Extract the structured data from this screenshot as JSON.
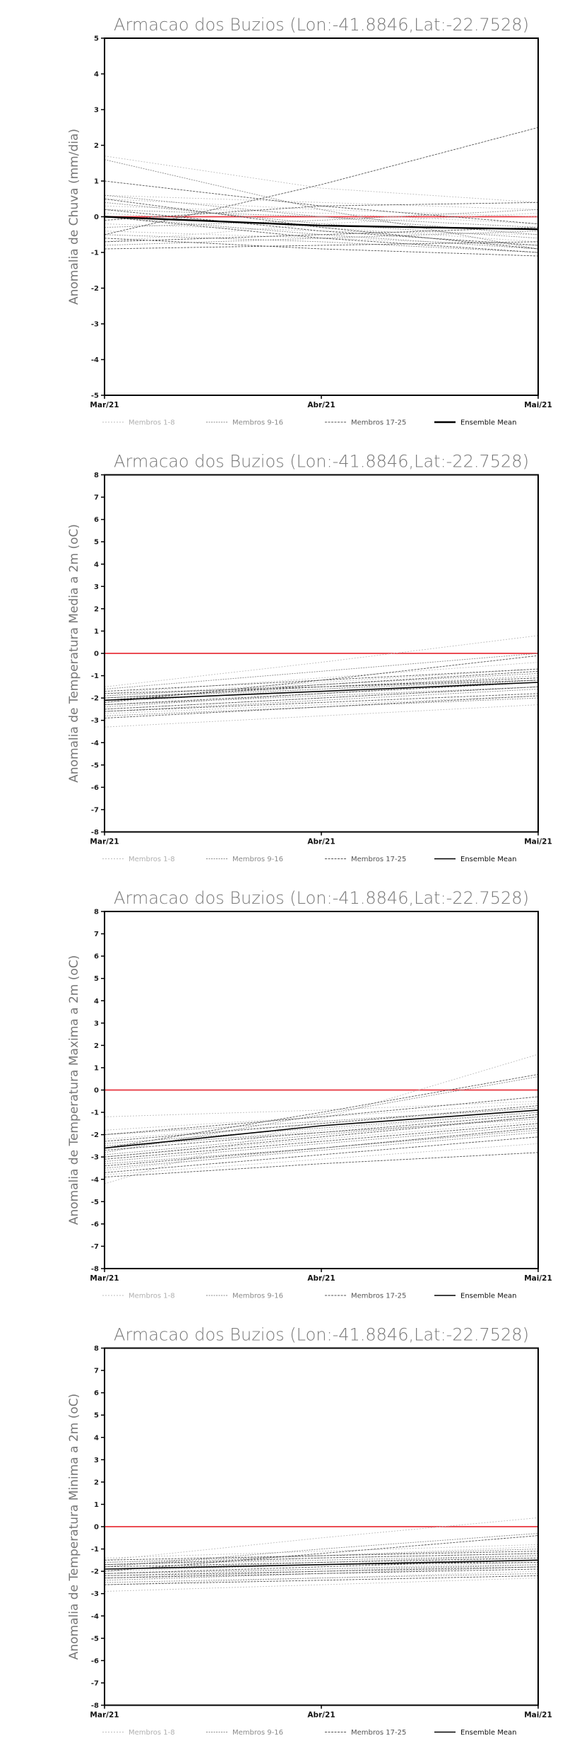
{
  "colors": {
    "zero_line": "#e8323c",
    "members_1_8": "#bdbdbd",
    "members_9_16": "#8a8a8a",
    "members_17_25": "#555555",
    "ensemble_mean": "#000000",
    "text": "#777777",
    "axis": "#000000"
  },
  "legend_labels": [
    "Membros 1-8",
    "Membros 9-16",
    "Membros 17-25",
    "Ensemble Mean"
  ],
  "chart_data": [
    {
      "type": "line",
      "title": "Armacao dos Buzios (Lon:-41.8846,Lat:-22.7528)",
      "ylabel": "Anomalia de Chuva (mm/dia)",
      "xlabel": "",
      "categories": [
        "Mar/21",
        "Abr/21",
        "Mai/21"
      ],
      "ylim": [
        -5,
        5
      ],
      "yticks": [
        5,
        4,
        3,
        2,
        1,
        0,
        -1,
        -2,
        -3,
        -4,
        -5
      ],
      "grid": false,
      "legend_position": "bottom",
      "reference_line": 0,
      "series": [
        {
          "name": "Ensemble Mean",
          "values": [
            0.0,
            -0.25,
            -0.35
          ]
        },
        {
          "group": "Membros 1-8",
          "values": [
            1.7,
            0.8,
            0.4
          ]
        },
        {
          "group": "Membros 1-8",
          "values": [
            0.5,
            0.2,
            0.0
          ]
        },
        {
          "group": "Membros 1-8",
          "values": [
            0.1,
            -0.3,
            -0.7
          ]
        },
        {
          "group": "Membros 1-8",
          "values": [
            -0.4,
            -0.6,
            -0.8
          ]
        },
        {
          "group": "Membros 1-8",
          "values": [
            -0.7,
            -0.2,
            0.1
          ]
        },
        {
          "group": "Membros 1-8",
          "values": [
            0.3,
            0.1,
            -0.2
          ]
        },
        {
          "group": "Membros 1-8",
          "values": [
            -0.2,
            -0.4,
            -0.5
          ]
        },
        {
          "group": "Membros 1-8",
          "values": [
            0.6,
            0.4,
            0.2
          ]
        },
        {
          "group": "Membros 9-16",
          "values": [
            1.6,
            0.2,
            -0.9
          ]
        },
        {
          "group": "Membros 9-16",
          "values": [
            0.4,
            -0.2,
            -0.6
          ]
        },
        {
          "group": "Membros 9-16",
          "values": [
            -0.5,
            -0.7,
            -1.0
          ]
        },
        {
          "group": "Membros 9-16",
          "values": [
            0.2,
            0.0,
            -0.3
          ]
        },
        {
          "group": "Membros 9-16",
          "values": [
            -0.8,
            -0.6,
            -0.4
          ]
        },
        {
          "group": "Membros 9-16",
          "values": [
            0.0,
            -0.5,
            -0.9
          ]
        },
        {
          "group": "Membros 9-16",
          "values": [
            -0.3,
            -0.1,
            0.2
          ]
        },
        {
          "group": "Membros 9-16",
          "values": [
            0.6,
            0.0,
            -0.5
          ]
        },
        {
          "group": "Membros 17-25",
          "values": [
            -0.5,
            0.9,
            2.5
          ]
        },
        {
          "group": "Membros 17-25",
          "values": [
            1.0,
            0.3,
            -0.2
          ]
        },
        {
          "group": "Membros 17-25",
          "values": [
            0.5,
            -0.3,
            -0.9
          ]
        },
        {
          "group": "Membros 17-25",
          "values": [
            -0.9,
            -0.8,
            -0.7
          ]
        },
        {
          "group": "Membros 17-25",
          "values": [
            -0.6,
            -0.9,
            -1.1
          ]
        },
        {
          "group": "Membros 17-25",
          "values": [
            0.2,
            -0.4,
            -0.8
          ]
        },
        {
          "group": "Membros 17-25",
          "values": [
            -0.1,
            0.3,
            0.4
          ]
        },
        {
          "group": "Membros 17-25",
          "values": [
            0.0,
            -0.6,
            -1.0
          ]
        },
        {
          "group": "Membros 17-25",
          "values": [
            -0.7,
            -0.5,
            -0.3
          ]
        }
      ]
    },
    {
      "type": "line",
      "title": "Armacao dos Buzios (Lon:-41.8846,Lat:-22.7528)",
      "ylabel": "Anomalia de Temperatura Media a 2m (oC)",
      "xlabel": "",
      "categories": [
        "Mar/21",
        "Abr/21",
        "Mai/21"
      ],
      "ylim": [
        -8,
        8
      ],
      "yticks": [
        8,
        7,
        6,
        5,
        4,
        3,
        2,
        1,
        0,
        -1,
        -2,
        -3,
        -4,
        -5,
        -6,
        -7,
        -8
      ],
      "grid": false,
      "legend_position": "bottom",
      "reference_line": 0,
      "series": [
        {
          "name": "Ensemble Mean",
          "values": [
            -2.1,
            -1.7,
            -1.3
          ]
        },
        {
          "group": "Membros 1-8",
          "values": [
            -1.5,
            -0.4,
            0.8
          ]
        },
        {
          "group": "Membros 1-8",
          "values": [
            -3.3,
            -2.8,
            -2.3
          ]
        },
        {
          "group": "Membros 1-8",
          "values": [
            -2.0,
            -1.5,
            -1.0
          ]
        },
        {
          "group": "Membros 1-8",
          "values": [
            -2.5,
            -2.0,
            -1.5
          ]
        },
        {
          "group": "Membros 1-8",
          "values": [
            -1.8,
            -1.1,
            -0.4
          ]
        },
        {
          "group": "Membros 1-8",
          "values": [
            -2.7,
            -2.3,
            -1.9
          ]
        },
        {
          "group": "Membros 1-8",
          "values": [
            -2.2,
            -1.6,
            -1.0
          ]
        },
        {
          "group": "Membros 1-8",
          "values": [
            -1.9,
            -1.3,
            -0.7
          ]
        },
        {
          "group": "Membros 9-16",
          "values": [
            -1.6,
            -0.8,
            0.0
          ]
        },
        {
          "group": "Membros 9-16",
          "values": [
            -2.4,
            -1.8,
            -1.2
          ]
        },
        {
          "group": "Membros 9-16",
          "values": [
            -2.1,
            -1.7,
            -1.3
          ]
        },
        {
          "group": "Membros 9-16",
          "values": [
            -2.8,
            -2.4,
            -2.0
          ]
        },
        {
          "group": "Membros 9-16",
          "values": [
            -1.9,
            -1.4,
            -0.9
          ]
        },
        {
          "group": "Membros 9-16",
          "values": [
            -2.3,
            -1.9,
            -1.5
          ]
        },
        {
          "group": "Membros 9-16",
          "values": [
            -2.6,
            -2.1,
            -1.6
          ]
        },
        {
          "group": "Membros 9-16",
          "values": [
            -2.0,
            -1.6,
            -1.2
          ]
        },
        {
          "group": "Membros 17-25",
          "values": [
            -2.2,
            -1.2,
            -0.1
          ]
        },
        {
          "group": "Membros 17-25",
          "values": [
            -1.7,
            -1.2,
            -0.7
          ]
        },
        {
          "group": "Membros 17-25",
          "values": [
            -2.5,
            -2.0,
            -1.5
          ]
        },
        {
          "group": "Membros 17-25",
          "values": [
            -2.0,
            -1.5,
            -1.1
          ]
        },
        {
          "group": "Membros 17-25",
          "values": [
            -2.9,
            -2.4,
            -1.9
          ]
        },
        {
          "group": "Membros 17-25",
          "values": [
            -2.3,
            -1.8,
            -1.3
          ]
        },
        {
          "group": "Membros 17-25",
          "values": [
            -1.8,
            -1.5,
            -1.2
          ]
        },
        {
          "group": "Membros 17-25",
          "values": [
            -2.6,
            -2.2,
            -1.8
          ]
        },
        {
          "group": "Membros 17-25",
          "values": [
            -2.1,
            -1.4,
            -0.8
          ]
        }
      ]
    },
    {
      "type": "line",
      "title": "Armacao dos Buzios (Lon:-41.8846,Lat:-22.7528)",
      "ylabel": "Anomalia de Temperatura Maxima a 2m (oC)",
      "xlabel": "",
      "categories": [
        "Mar/21",
        "Abr/21",
        "Mai/21"
      ],
      "ylim": [
        -8,
        8
      ],
      "yticks": [
        8,
        7,
        6,
        5,
        4,
        3,
        2,
        1,
        0,
        -1,
        -2,
        -3,
        -4,
        -5,
        -6,
        -7,
        -8
      ],
      "grid": false,
      "legend_position": "bottom",
      "reference_line": 0,
      "series": [
        {
          "name": "Ensemble Mean",
          "values": [
            -2.6,
            -1.6,
            -0.9
          ]
        },
        {
          "group": "Membros 1-8",
          "values": [
            -4.2,
            -1.3,
            1.6
          ]
        },
        {
          "group": "Membros 1-8",
          "values": [
            -1.2,
            -0.9,
            -0.5
          ]
        },
        {
          "group": "Membros 1-8",
          "values": [
            -3.6,
            -2.6,
            -1.7
          ]
        },
        {
          "group": "Membros 1-8",
          "values": [
            -3.0,
            -2.2,
            -1.4
          ]
        },
        {
          "group": "Membros 1-8",
          "values": [
            -2.2,
            -1.5,
            -0.8
          ]
        },
        {
          "group": "Membros 1-8",
          "values": [
            -3.8,
            -3.1,
            -2.4
          ]
        },
        {
          "group": "Membros 1-8",
          "values": [
            -2.6,
            -1.8,
            -1.0
          ]
        },
        {
          "group": "Membros 1-8",
          "values": [
            -1.8,
            -1.2,
            -0.6
          ]
        },
        {
          "group": "Membros 9-16",
          "values": [
            -2.8,
            -1.1,
            0.6
          ]
        },
        {
          "group": "Membros 9-16",
          "values": [
            -3.2,
            -2.4,
            -1.6
          ]
        },
        {
          "group": "Membros 9-16",
          "values": [
            -2.4,
            -1.7,
            -1.0
          ]
        },
        {
          "group": "Membros 9-16",
          "values": [
            -3.5,
            -2.7,
            -1.9
          ]
        },
        {
          "group": "Membros 9-16",
          "values": [
            -2.0,
            -1.4,
            -0.8
          ]
        },
        {
          "group": "Membros 9-16",
          "values": [
            -2.9,
            -2.0,
            -1.2
          ]
        },
        {
          "group": "Membros 9-16",
          "values": [
            -3.3,
            -2.6,
            -1.8
          ]
        },
        {
          "group": "Membros 9-16",
          "values": [
            -2.5,
            -1.9,
            -1.3
          ]
        },
        {
          "group": "Membros 17-25",
          "values": [
            -2.6,
            -1.0,
            0.7
          ]
        },
        {
          "group": "Membros 17-25",
          "values": [
            -3.9,
            -3.3,
            -2.8
          ]
        },
        {
          "group": "Membros 17-25",
          "values": [
            -3.1,
            -2.3,
            -1.5
          ]
        },
        {
          "group": "Membros 17-25",
          "values": [
            -2.7,
            -1.9,
            -1.1
          ]
        },
        {
          "group": "Membros 17-25",
          "values": [
            -3.4,
            -2.6,
            -1.7
          ]
        },
        {
          "group": "Membros 17-25",
          "values": [
            -2.3,
            -1.5,
            -0.7
          ]
        },
        {
          "group": "Membros 17-25",
          "values": [
            -3.7,
            -2.9,
            -2.1
          ]
        },
        {
          "group": "Membros 17-25",
          "values": [
            -2.0,
            -1.2,
            -0.3
          ]
        },
        {
          "group": "Membros 17-25",
          "values": [
            -3.0,
            -2.1,
            -1.2
          ]
        }
      ]
    },
    {
      "type": "line",
      "title": "Armacao dos Buzios (Lon:-41.8846,Lat:-22.7528)",
      "ylabel": "Anomalia de Temperatura Minima a 2m (oC)",
      "xlabel": "",
      "categories": [
        "Mar/21",
        "Abr/21",
        "Mai/21"
      ],
      "ylim": [
        -8,
        8
      ],
      "yticks": [
        8,
        7,
        6,
        5,
        4,
        3,
        2,
        1,
        0,
        -1,
        -2,
        -3,
        -4,
        -5,
        -6,
        -7,
        -8
      ],
      "grid": false,
      "legend_position": "bottom",
      "reference_line": 0,
      "series": [
        {
          "name": "Ensemble Mean",
          "values": [
            -1.9,
            -1.7,
            -1.5
          ]
        },
        {
          "group": "Membros 1-8",
          "values": [
            -1.5,
            -0.5,
            0.4
          ]
        },
        {
          "group": "Membros 1-8",
          "values": [
            -2.9,
            -2.6,
            -2.3
          ]
        },
        {
          "group": "Membros 1-8",
          "values": [
            -1.7,
            -1.3,
            -0.9
          ]
        },
        {
          "group": "Membros 1-8",
          "values": [
            -2.2,
            -1.9,
            -1.6
          ]
        },
        {
          "group": "Membros 1-8",
          "values": [
            -1.4,
            -1.1,
            -0.8
          ]
        },
        {
          "group": "Membros 1-8",
          "values": [
            -2.6,
            -2.3,
            -2.0
          ]
        },
        {
          "group": "Membros 1-8",
          "values": [
            -2.0,
            -1.7,
            -1.4
          ]
        },
        {
          "group": "Membros 1-8",
          "values": [
            -1.6,
            -1.4,
            -1.2
          ]
        },
        {
          "group": "Membros 9-16",
          "values": [
            -1.8,
            -1.0,
            -0.3
          ]
        },
        {
          "group": "Membros 9-16",
          "values": [
            -2.3,
            -2.0,
            -1.7
          ]
        },
        {
          "group": "Membros 9-16",
          "values": [
            -1.9,
            -1.6,
            -1.3
          ]
        },
        {
          "group": "Membros 9-16",
          "values": [
            -2.5,
            -2.3,
            -2.1
          ]
        },
        {
          "group": "Membros 9-16",
          "values": [
            -1.6,
            -1.3,
            -1.0
          ]
        },
        {
          "group": "Membros 9-16",
          "values": [
            -2.1,
            -1.9,
            -1.7
          ]
        },
        {
          "group": "Membros 9-16",
          "values": [
            -2.4,
            -2.1,
            -1.8
          ]
        },
        {
          "group": "Membros 9-16",
          "values": [
            -1.7,
            -1.5,
            -1.3
          ]
        },
        {
          "group": "Membros 17-25",
          "values": [
            -2.0,
            -1.2,
            -0.4
          ]
        },
        {
          "group": "Membros 17-25",
          "values": [
            -1.5,
            -1.3,
            -1.1
          ]
        },
        {
          "group": "Membros 17-25",
          "values": [
            -2.2,
            -2.0,
            -1.8
          ]
        },
        {
          "group": "Membros 17-25",
          "values": [
            -1.8,
            -1.6,
            -1.4
          ]
        },
        {
          "group": "Membros 17-25",
          "values": [
            -2.6,
            -2.4,
            -2.2
          ]
        },
        {
          "group": "Membros 17-25",
          "values": [
            -2.1,
            -1.8,
            -1.5
          ]
        },
        {
          "group": "Membros 17-25",
          "values": [
            -1.7,
            -1.4,
            -1.2
          ]
        },
        {
          "group": "Membros 17-25",
          "values": [
            -2.3,
            -2.1,
            -1.9
          ]
        },
        {
          "group": "Membros 17-25",
          "values": [
            -1.9,
            -1.7,
            -1.6
          ]
        }
      ]
    }
  ]
}
